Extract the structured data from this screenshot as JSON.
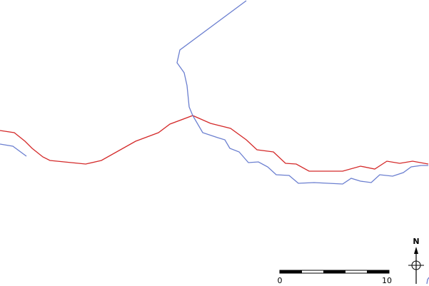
{
  "north_label": "N",
  "scale_bar": {
    "labels": [
      "0",
      "10"
    ]
  }
}
